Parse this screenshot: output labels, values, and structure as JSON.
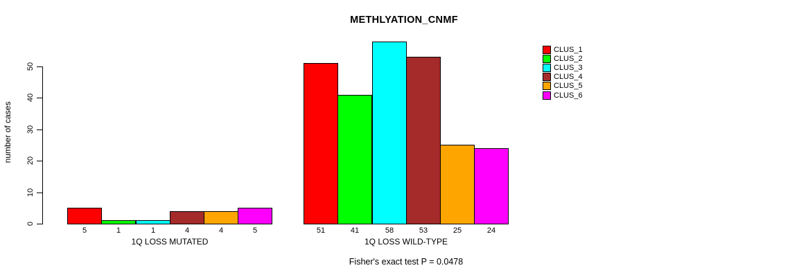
{
  "title": "METHLYATION_CNMF",
  "chart_data": {
    "type": "bar",
    "title": "METHLYATION_CNMF",
    "ylabel": "number of cases",
    "xlabel": "",
    "ylim": [
      0,
      58
    ],
    "yticks": [
      0,
      10,
      20,
      30,
      40,
      50
    ],
    "grid": false,
    "legend_position": "right",
    "series": [
      "CLUS_1",
      "CLUS_2",
      "CLUS_3",
      "CLUS_4",
      "CLUS_5",
      "CLUS_6"
    ],
    "colors": [
      "#ff0000",
      "#00ff00",
      "#00ffff",
      "#a52a2a",
      "#ffa500",
      "#ff00ff"
    ],
    "groups": [
      {
        "label": "1Q LOSS MUTATED",
        "values": [
          5,
          1,
          1,
          4,
          4,
          5
        ]
      },
      {
        "label": "1Q LOSS WILD-TYPE",
        "values": [
          51,
          41,
          58,
          53,
          25,
          24
        ]
      }
    ],
    "annotation": "Fisher's exact test P = 0.0478"
  }
}
